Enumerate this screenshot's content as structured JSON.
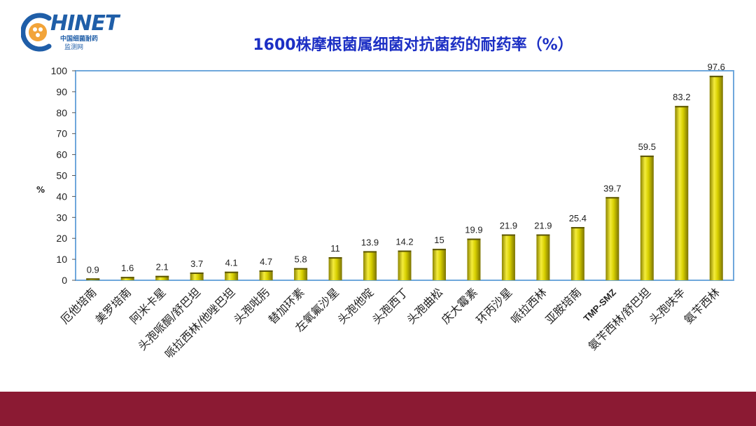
{
  "logo": {
    "text": "HINET",
    "sub1": "中国细菌耐药",
    "sub2": "监测网"
  },
  "chart_data": {
    "type": "bar",
    "title": "1600株摩根菌属细菌对抗菌药的耐药率（%）",
    "ylabel": "%",
    "xlabel": "",
    "ylim": [
      0,
      100
    ],
    "yticks": [
      0,
      10,
      20,
      30,
      40,
      50,
      60,
      70,
      80,
      90,
      100
    ],
    "categories": [
      "厄他培南",
      "美罗培南",
      "阿米卡星",
      "头孢哌酮/舒巴坦",
      "哌拉西林/他唑巴坦",
      "头孢吡肟",
      "替加环素",
      "左氧氟沙星",
      "头孢他啶",
      "头孢西丁",
      "头孢曲松",
      "庆大霉素",
      "环丙沙星",
      "哌拉西林",
      "亚胺培南",
      "TMP-SMZ",
      "氨苄西林/舒巴坦",
      "头孢呋辛",
      "氨苄西林"
    ],
    "values": [
      0.9,
      1.6,
      2.1,
      3.7,
      4.1,
      4.7,
      5.8,
      11,
      13.9,
      14.2,
      15,
      19.9,
      21.9,
      21.9,
      25.4,
      39.7,
      59.5,
      83.2,
      97.6
    ],
    "data_labels": [
      "0.9",
      "1.6",
      "2.1",
      "3.7",
      "4.1",
      "4.7",
      "5.8",
      "11",
      "13.9",
      "14.2",
      "15",
      "19.9",
      "21.9",
      "21.9",
      "25.4",
      "39.7",
      "59.5",
      "83.2",
      "97.6"
    ],
    "bar_color": "#c8c000",
    "grid": false,
    "legend": "none"
  },
  "colors": {
    "title": "#1c2fc4",
    "axis_frame": "#6fa8dc",
    "footer": "#8b1a33"
  }
}
